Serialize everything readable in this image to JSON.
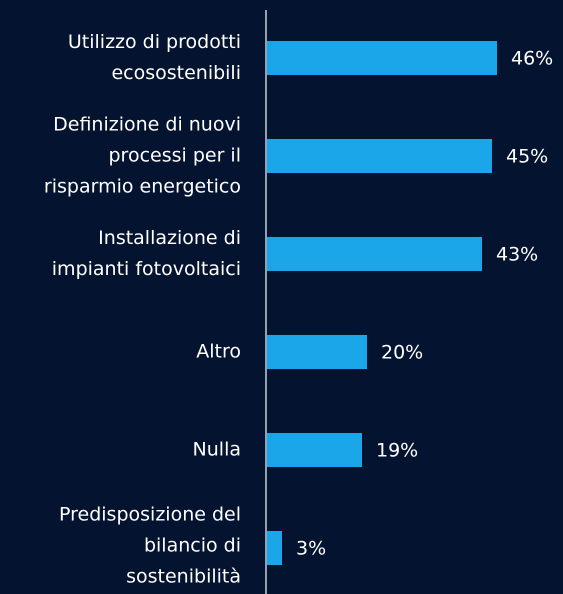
{
  "chart_data": {
    "type": "bar",
    "orientation": "horizontal",
    "categories": [
      "Utilizzo di prodotti\necosostenibili",
      "Definizione di nuovi\nprocessi per il\nrisparmio energetico",
      "Installazione di\nimpianti fotovoltaici",
      "Altro",
      "Nulla",
      "Predisposizione del\nbilancio di\nsostenibilità"
    ],
    "values": [
      46,
      45,
      43,
      20,
      19,
      3
    ],
    "value_labels": [
      "46%",
      "45%",
      "43%",
      "20%",
      "19%",
      "3%"
    ],
    "color": "#1ba6ea"
  }
}
